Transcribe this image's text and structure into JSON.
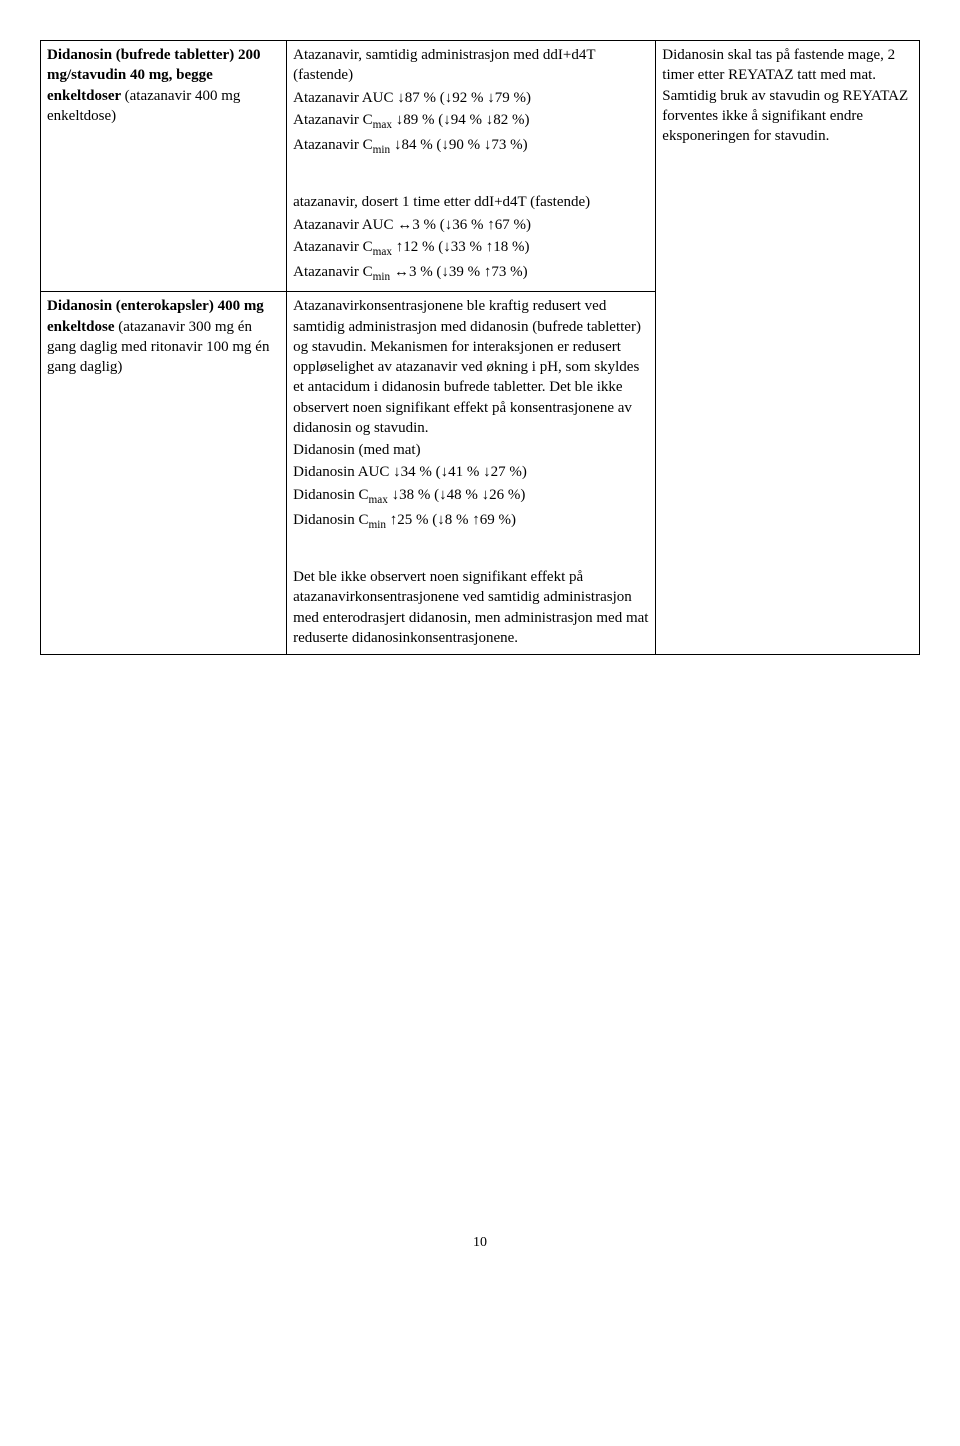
{
  "page_number": "10",
  "table": {
    "rows": [
      {
        "col1": {
          "segments": [
            {
              "text": "Didanosin (bufrede tabletter) 200 mg/stavudin 40 mg, begge enkeltdoser ",
              "bold": true
            },
            {
              "text": "(atazanavir 400 mg enkeltdose)",
              "bold": false
            }
          ]
        },
        "col2": {
          "paragraphs": [
            [
              {
                "text": "Atazanavir, samtidig administrasjon med ddI+d4T (fastende)"
              }
            ],
            [
              {
                "text": "Atazanavir AUC ↓87 % (↓92 % ↓79 %)"
              }
            ],
            [
              {
                "text": "Atazanavir C"
              },
              {
                "text": "max",
                "sub": true
              },
              {
                "text": " ↓89 % (↓94 % ↓82 %)"
              }
            ],
            [
              {
                "text": "Atazanavir C"
              },
              {
                "text": "min",
                "sub": true
              },
              {
                "text": " ↓84 % (↓90 % ↓73 %)"
              }
            ],
            [
              {
                "text": "",
                "gap": true
              }
            ],
            [
              {
                "text": "atazanavir, dosert 1 time etter ddI+d4T (fastende)"
              }
            ],
            [
              {
                "text": "Atazanavir AUC ↔3 % (↓36 % ↑67 %)"
              }
            ],
            [
              {
                "text": "Atazanavir C"
              },
              {
                "text": "max",
                "sub": true
              },
              {
                "text": " ↑12 % (↓33 % ↑18 %)"
              }
            ],
            [
              {
                "text": "Atazanavir C"
              },
              {
                "text": "min",
                "sub": true
              },
              {
                "text": " ↔3 % (↓39 % ↑73 %)"
              }
            ]
          ]
        },
        "col3": {
          "paragraphs": [
            [
              {
                "text": "Didanosin skal tas på fastende mage, 2 timer etter REYATAZ tatt med mat. Samtidig bruk av stavudin og REYATAZ forventes ikke å signifikant endre eksponeringen for stavudin."
              }
            ]
          ]
        }
      },
      {
        "col1": {
          "segments": [
            {
              "text": "Didanosin (enterokapsler) 400 mg enkeltdose",
              "bold": true
            },
            {
              "text": " (atazanavir 300 mg én gang daglig med ritonavir 100 mg én gang daglig)",
              "bold": false
            }
          ]
        },
        "col2": {
          "paragraphs": [
            [
              {
                "text": "Atazanavirkonsentrasjonene ble kraftig redusert ved samtidig administrasjon med didanosin (bufrede tabletter) og stavudin. Mekanismen for interaksjonen er redusert oppløselighet av atazanavir ved økning i pH, som skyldes et antacidum i didanosin bufrede tabletter. Det ble ikke observert noen signifikant effekt på konsentrasjonene av didanosin og stavudin."
              }
            ],
            [
              {
                "text": "Didanosin (med mat)"
              }
            ],
            [
              {
                "text": "Didanosin AUC ↓34 % (↓41 % ↓27 %)"
              }
            ],
            [
              {
                "text": "Didanosin C"
              },
              {
                "text": "max",
                "sub": true
              },
              {
                "text": " ↓38 % (↓48 % ↓26 %)"
              }
            ],
            [
              {
                "text": "Didanosin C"
              },
              {
                "text": "min",
                "sub": true
              },
              {
                "text": " ↑25 % (↓8 % ↑69 %)"
              }
            ],
            [
              {
                "text": "",
                "gap": true
              }
            ],
            [
              {
                "text": "Det ble ikke observert noen signifikant effekt på atazanavirkonsentrasjonene ved samtidig administrasjon med enterodrasjert didanosin, men administrasjon med mat reduserte didanosinkonsentrasjonene."
              }
            ]
          ]
        },
        "col3": {
          "paragraphs": []
        }
      }
    ]
  }
}
